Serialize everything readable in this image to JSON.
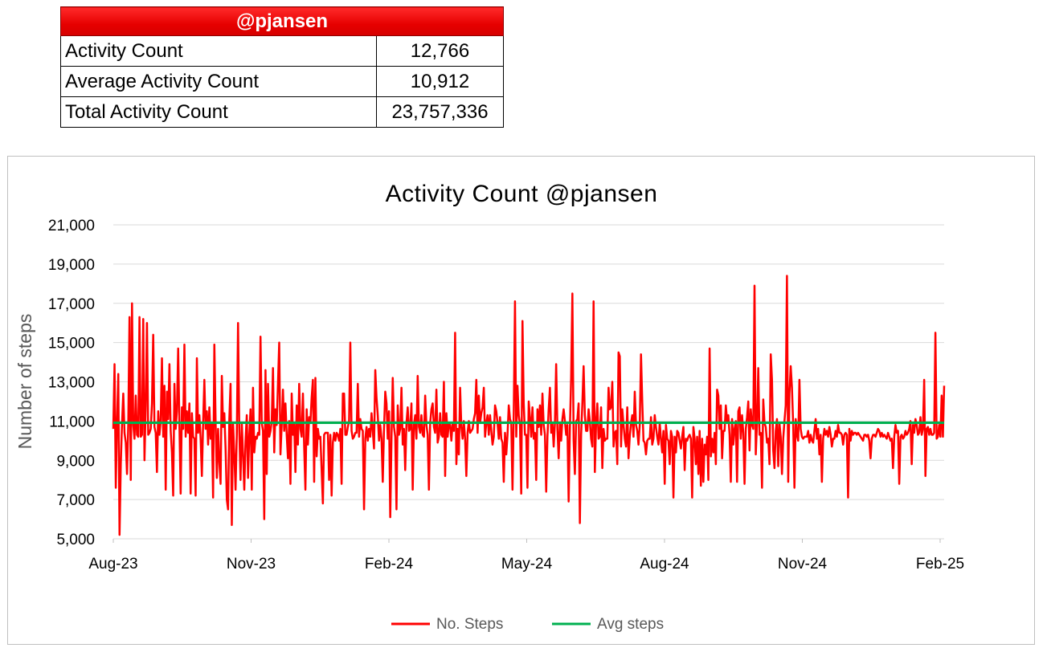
{
  "stats_table": {
    "header": "@pjansen",
    "rows": [
      {
        "label": "Activity Count",
        "value": "12,766"
      },
      {
        "label": "Average Activity Count",
        "value": "10,912"
      },
      {
        "label": "Total Activity Count",
        "value": "23,757,336"
      }
    ]
  },
  "chart_data": {
    "type": "line",
    "title": "Activity Count @pjansen",
    "ylabel": "Number of steps",
    "xlabel": "",
    "ylim": [
      5000,
      21000
    ],
    "y_ticks": [
      "5,000",
      "7,000",
      "9,000",
      "11,000",
      "13,000",
      "15,000",
      "17,000",
      "19,000",
      "21,000"
    ],
    "x_ticks": [
      "Aug-23",
      "Nov-23",
      "Feb-24",
      "May-24",
      "Aug-24",
      "Nov-24",
      "Feb-25"
    ],
    "grid": true,
    "legend_position": "bottom",
    "colors": {
      "steps": "#ff0000",
      "avg": "#00b050",
      "grid": "#d9d9d9"
    },
    "series": [
      {
        "name": "No. Steps",
        "values": [
          10600,
          13900,
          7600,
          11000,
          13400,
          5200,
          8800,
          10900,
          12400,
          10400,
          9900,
          8300,
          10800,
          16300,
          8000,
          17000,
          10800,
          10100,
          12300,
          10300,
          10200,
          16300,
          10200,
          10300,
          16200,
          9000,
          11800,
          16000,
          10300,
          10400,
          10600,
          11900,
          15400,
          10700,
          10400,
          8400,
          11500,
          10300,
          11000,
          14200,
          10200,
          12800,
          7500,
          12500,
          11100,
          13900,
          10500,
          9400,
          7200,
          12900,
          10600,
          11500,
          14700,
          10800,
          7300,
          11700,
          10600,
          14900,
          10200,
          11500,
          10400,
          11900,
          7300,
          11400,
          10200,
          10100,
          7200,
          14200,
          10400,
          11300,
          10100,
          8200,
          10900,
          13100,
          10600,
          11500,
          9800,
          11700,
          10100,
          10900,
          7100,
          14900,
          11000,
          8100,
          10600,
          8900,
          7800,
          13300,
          10700,
          11400,
          9600,
          7000,
          6500,
          11100,
          12900,
          5700,
          10900,
          9300,
          7500,
          10300,
          16000,
          10500,
          8000,
          10900,
          9300,
          7500,
          10000,
          11300,
          8100,
          10300,
          11600,
          7500,
          12700,
          9400,
          10200,
          10100,
          10400,
          10300,
          15300,
          10900,
          10500,
          6000,
          13600,
          8300,
          12900,
          10200,
          10500,
          11000,
          13700,
          9400,
          11600,
          10800,
          12900,
          15000,
          9300,
          10800,
          12600,
          10500,
          11900,
          10300,
          9100,
          11000,
          7800,
          12400,
          10300,
          10900,
          8400,
          11800,
          9800,
          12900,
          10600,
          10200,
          12400,
          9700,
          7500,
          11600,
          9800,
          11200,
          10900,
          12200,
          13100,
          7900,
          13200,
          9200,
          10600,
          10100,
          10200,
          8500,
          6800,
          10300,
          10400,
          10400,
          10400,
          8000,
          10300,
          7200,
          9900,
          10400,
          10000,
          10400,
          10300,
          10000,
          10600,
          7800,
          12400,
          12400,
          10300,
          10300,
          10700,
          11000,
          15000,
          10500,
          10100,
          10200,
          10400,
          10400,
          12900,
          10200,
          11100,
          10600,
          10500,
          6500,
          10100,
          10700,
          10000,
          10600,
          10200,
          11400,
          10500,
          9600,
          13600,
          12200,
          11300,
          10000,
          10800,
          10100,
          7900,
          10600,
          12500,
          11900,
          10100,
          11500,
          6100,
          10100,
          13200,
          10700,
          10200,
          6500,
          11800,
          10300,
          10600,
          12700,
          9800,
          10600,
          8500,
          10900,
          11700,
          10500,
          10600,
          11900,
          7500,
          10800,
          11300,
          10100,
          13300,
          10700,
          10400,
          11300,
          10300,
          10200,
          12300,
          10800,
          10300,
          7500,
          10900,
          11600,
          11900,
          10700,
          10400,
          12600,
          9900,
          10200,
          11400,
          10300,
          10200,
          13000,
          8200,
          11400,
          10200,
          10900,
          10800,
          10000,
          10900,
          10500,
          15500,
          8800,
          10600,
          9300,
          12700,
          10700,
          10100,
          11000,
          10100,
          8200,
          10400,
          11000,
          10400,
          10500,
          10600,
          11100,
          11400,
          13100,
          10400,
          12300,
          10900,
          11400,
          11700,
          12700,
          10200,
          10900,
          11300,
          10300,
          11300,
          10500,
          9800,
          10200,
          11800,
          11500,
          10900,
          10100,
          11200,
          10100,
          9900,
          7900,
          10400,
          9300,
          10300,
          11800,
          11100,
          10900,
          7500,
          11400,
          17100,
          10200,
          12800,
          11300,
          10800,
          7300,
          16100,
          11900,
          10300,
          10300,
          7600,
          12000,
          11200,
          10200,
          11700,
          10100,
          10400,
          8000,
          11600,
          10700,
          11800,
          10300,
          12400,
          10800,
          10300,
          7400,
          10200,
          11600,
          12700,
          10400,
          10900,
          9700,
          10900,
          13900,
          10600,
          9100,
          10900,
          10000,
          11100,
          11600,
          11000,
          10300,
          10800,
          6900,
          10600,
          13200,
          17500,
          10000,
          8300,
          11000,
          11100,
          11900,
          5800,
          10300,
          11900,
          13800,
          11300,
          10500,
          10500,
          11600,
          11000,
          10100,
          9700,
          17100,
          8400,
          10900,
          11900,
          10100,
          10200,
          11700,
          8600,
          10600,
          10000,
          10100,
          10100,
          12700,
          11600,
          11700,
          13000,
          9700,
          10400,
          10500,
          8800,
          14500,
          14300,
          9700,
          11600,
          10800,
          10100,
          9700,
          11700,
          9100,
          10200,
          10900,
          11300,
          10200,
          12500,
          10800,
          10500,
          9800,
          10800,
          14400,
          12000,
          10000,
          9900,
          9300,
          10000,
          10100,
          10100,
          11200,
          9800,
          10100,
          11300,
          10700,
          10200,
          9800,
          10900,
          10100,
          9400,
          10500,
          7800,
          10800,
          10100,
          10000,
          8800,
          10500,
          10200,
          7100,
          10200,
          9400,
          10500,
          10400,
          10000,
          9600,
          10200,
          10700,
          8500,
          10100,
          10000,
          10200,
          10300,
          10100,
          7100,
          10700,
          10100,
          8800,
          10200,
          8300,
          10500,
          7700,
          10100,
          7900,
          9800,
          9300,
          10200,
          8000,
          14700,
          9200,
          10100,
          9400,
          10400,
          8800,
          12600,
          12300,
          10600,
          11800,
          9100,
          10500,
          10500,
          11800,
          11000,
          11300,
          10300,
          7900,
          11100,
          9800,
          10600,
          11000,
          7900,
          11500,
          11700,
          10100,
          11300,
          10400,
          7800,
          10600,
          11200,
          12000,
          9500,
          11600,
          10800,
          10600,
          17900,
          9300,
          10900,
          13700,
          10300,
          10400,
          7600,
          12100,
          10900,
          10700,
          9900,
          10100,
          8800,
          14400,
          13100,
          9500,
          8600,
          10500,
          11100,
          8700,
          10900,
          10200,
          8300,
          10100,
          11000,
          11800,
          18400,
          7900,
          12400,
          13800,
          12700,
          10800,
          7600,
          11100,
          10300,
          10000,
          13100,
          10600,
          10200,
          10100,
          10200,
          10200,
          10200,
          10500,
          9900,
          10300,
          10000,
          9900,
          10500,
          11100,
          10100,
          10600,
          9300,
          10300,
          7900,
          10100,
          10600,
          10300,
          10500,
          10200,
          10700,
          10300,
          9700,
          10100,
          10100,
          10500,
          10200,
          10800,
          10400,
          10400,
          10300,
          9800,
          10300,
          10400,
          10300,
          7100,
          10600,
          10000,
          10500,
          10300,
          10400,
          10400,
          10300,
          10400,
          10300,
          10200,
          10100,
          10000,
          10300,
          10300,
          10200,
          10300,
          10000,
          9100,
          10100,
          10300,
          10300,
          10200,
          10400,
          10600,
          10500,
          10200,
          10400,
          10200,
          10300,
          10200,
          10100,
          10400,
          10200,
          10000,
          10100,
          8600,
          10200,
          10800,
          10400,
          10500,
          7800,
          10200,
          10300,
          10100,
          10200,
          10500,
          10300,
          10400,
          10600,
          11000,
          8800,
          10800,
          10400,
          11100,
          10800,
          10300,
          10400,
          11200,
          10300,
          10600,
          13100,
          8200,
          10600,
          10700,
          10300,
          10600,
          10300,
          10300,
          10400,
          15500,
          10100,
          10200,
          10800,
          10200,
          12300,
          10200,
          12800
        ]
      },
      {
        "name": "Avg steps",
        "values": [
          10912
        ]
      }
    ]
  }
}
